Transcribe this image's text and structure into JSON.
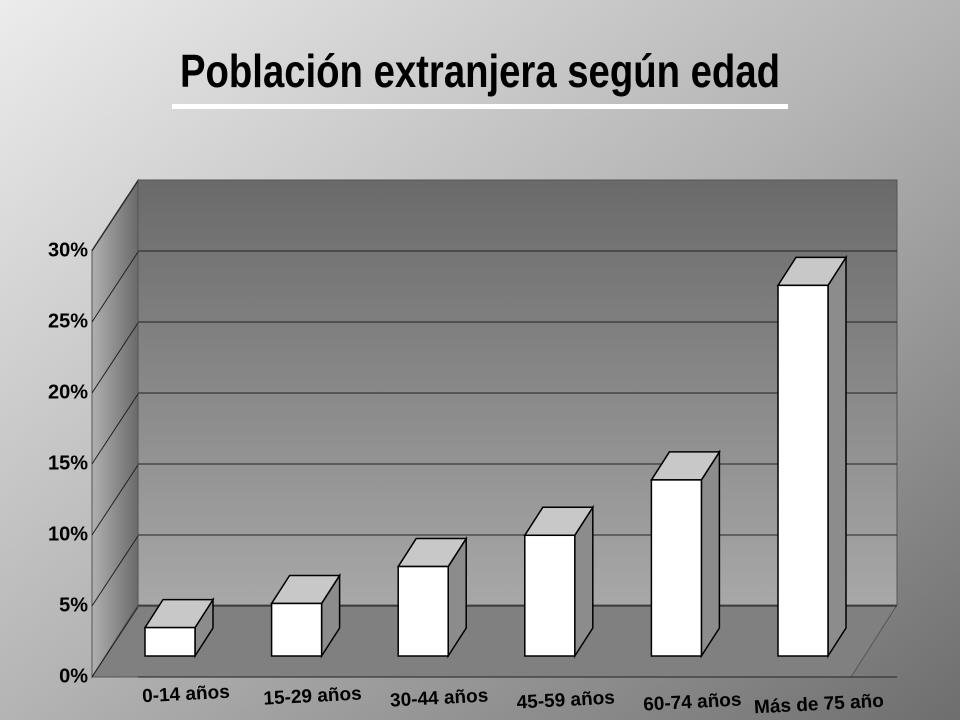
{
  "chart_data": {
    "type": "bar3d",
    "title": "Población extranjera según edad",
    "categories": [
      "0-14 años",
      "15-29 años",
      "30-44 años",
      "45-59 años",
      "60-74 años",
      "Más de 75 año"
    ],
    "values": [
      2,
      3.7,
      6.3,
      8.5,
      12.4,
      26.1
    ],
    "color": "#ffffff",
    "ylim": [
      0,
      30
    ],
    "yticks": [
      {
        "value": 0,
        "label": "0%"
      },
      {
        "value": 5,
        "label": "5%"
      },
      {
        "value": 10,
        "label": "10%"
      },
      {
        "value": 15,
        "label": "15%"
      },
      {
        "value": 20,
        "label": "20%"
      },
      {
        "value": 25,
        "label": "25%"
      },
      {
        "value": 30,
        "label": "30%"
      }
    ],
    "grid": true
  }
}
